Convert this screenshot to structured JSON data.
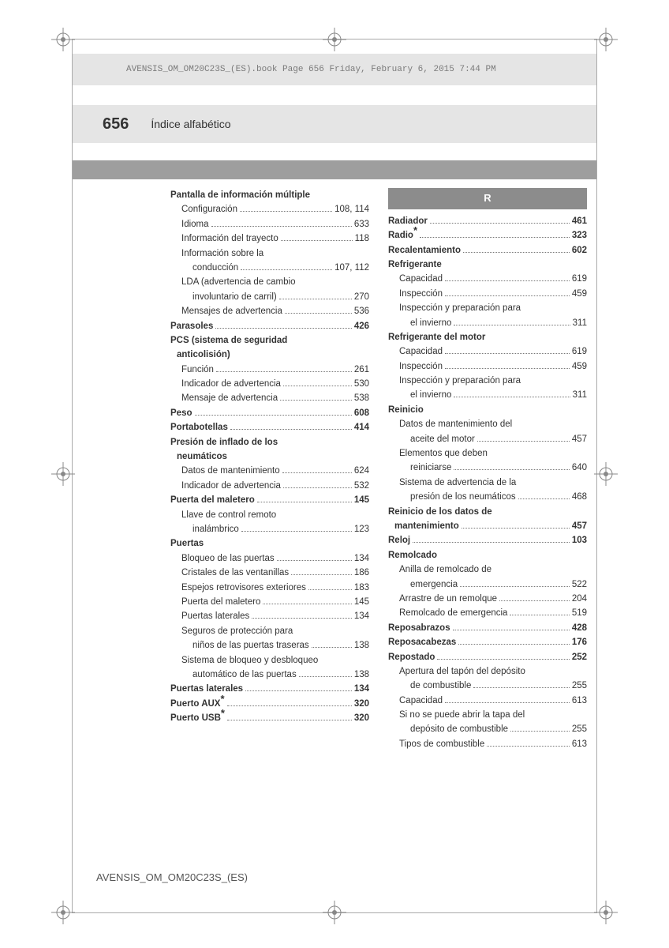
{
  "meta": {
    "bannerText": "AVENSIS_OM_OM20C23S_(ES).book  Page 656  Friday, February 6, 2015  7:44 PM",
    "pageNumber": "656",
    "sectionTitle": "Índice alfabético",
    "footer": "AVENSIS_OM_OM20C23S_(ES)"
  },
  "colors": {
    "bannerBg": "#e5e5e5",
    "accentBg": "#9e9e9e",
    "letterBg": "#8c8c8c",
    "text": "#333333"
  },
  "leftCol": [
    {
      "label": "Pantalla de información múltiple",
      "page": "",
      "bold": true,
      "indent": 0,
      "dots": false
    },
    {
      "label": "Configuración",
      "page": "108, 114",
      "indent": 1,
      "dots": true
    },
    {
      "label": "Idioma",
      "page": "633",
      "indent": 1,
      "dots": true
    },
    {
      "label": "Información del trayecto",
      "page": "118",
      "indent": 1,
      "dots": true
    },
    {
      "label": "Información sobre la",
      "page": "",
      "indent": 1,
      "dots": false
    },
    {
      "label": "conducción",
      "page": "107, 112",
      "indent": 2,
      "dots": true
    },
    {
      "label": "LDA (advertencia de cambio",
      "page": "",
      "indent": 1,
      "dots": false
    },
    {
      "label": "involuntario de carril)",
      "page": "270",
      "indent": 2,
      "dots": true
    },
    {
      "label": "Mensajes de advertencia",
      "page": "536",
      "indent": 1,
      "dots": true
    },
    {
      "label": "Parasoles",
      "page": "426",
      "bold": true,
      "indent": 0,
      "dots": true
    },
    {
      "label": "PCS (sistema de seguridad",
      "page": "",
      "bold": true,
      "indent": 0,
      "dots": false
    },
    {
      "label": "anticolisión)",
      "page": "",
      "bold": true,
      "indent": 0,
      "dots": false,
      "indentPx": 8
    },
    {
      "label": "Función",
      "page": "261",
      "indent": 1,
      "dots": true
    },
    {
      "label": "Indicador de advertencia",
      "page": "530",
      "indent": 1,
      "dots": true
    },
    {
      "label": "Mensaje de advertencia",
      "page": "538",
      "indent": 1,
      "dots": true
    },
    {
      "label": "Peso",
      "page": "608",
      "bold": true,
      "indent": 0,
      "dots": true
    },
    {
      "label": "Portabotellas",
      "page": "414",
      "bold": true,
      "indent": 0,
      "dots": true
    },
    {
      "label": "Presión de inflado de los",
      "page": "",
      "bold": true,
      "indent": 0,
      "dots": false
    },
    {
      "label": "neumáticos",
      "page": "",
      "bold": true,
      "indent": 0,
      "dots": false,
      "indentPx": 8
    },
    {
      "label": "Datos de mantenimiento",
      "page": "624",
      "indent": 1,
      "dots": true
    },
    {
      "label": "Indicador de advertencia",
      "page": "532",
      "indent": 1,
      "dots": true
    },
    {
      "label": "Puerta del maletero",
      "page": "145",
      "bold": true,
      "indent": 0,
      "dots": true
    },
    {
      "label": "Llave de control remoto",
      "page": "",
      "indent": 1,
      "dots": false
    },
    {
      "label": "inalámbrico",
      "page": "123",
      "indent": 2,
      "dots": true
    },
    {
      "label": "Puertas",
      "page": "",
      "bold": true,
      "indent": 0,
      "dots": false
    },
    {
      "label": "Bloqueo de las puertas",
      "page": "134",
      "indent": 1,
      "dots": true
    },
    {
      "label": "Cristales de las ventanillas",
      "page": "186",
      "indent": 1,
      "dots": true
    },
    {
      "label": "Espejos retrovisores exteriores",
      "page": "183",
      "indent": 1,
      "dots": true
    },
    {
      "label": "Puerta del maletero",
      "page": "145",
      "indent": 1,
      "dots": true
    },
    {
      "label": "Puertas laterales",
      "page": "134",
      "indent": 1,
      "dots": true
    },
    {
      "label": "Seguros de protección para",
      "page": "",
      "indent": 1,
      "dots": false
    },
    {
      "label": "niños de las puertas traseras",
      "page": "138",
      "indent": 2,
      "dots": true
    },
    {
      "label": "Sistema de bloqueo y desbloqueo",
      "page": "",
      "indent": 1,
      "dots": false
    },
    {
      "label": "automático de las puertas",
      "page": "138",
      "indent": 2,
      "dots": true
    },
    {
      "label": "Puertas laterales",
      "page": "134",
      "bold": true,
      "indent": 0,
      "dots": true
    },
    {
      "label": "Puerto AUX",
      "page": "320",
      "bold": true,
      "indent": 0,
      "dots": true,
      "star": true
    },
    {
      "label": "Puerto USB",
      "page": "320",
      "bold": true,
      "indent": 0,
      "dots": true,
      "star": true
    }
  ],
  "rightHead": "R",
  "rightCol": [
    {
      "label": "Radiador",
      "page": "461",
      "bold": true,
      "indent": 0,
      "dots": true
    },
    {
      "label": "Radio",
      "page": "323",
      "bold": true,
      "indent": 0,
      "dots": true,
      "star": true
    },
    {
      "label": "Recalentamiento",
      "page": "602",
      "bold": true,
      "indent": 0,
      "dots": true
    },
    {
      "label": "Refrigerante",
      "page": "",
      "bold": true,
      "indent": 0,
      "dots": false
    },
    {
      "label": "Capacidad",
      "page": "619",
      "indent": 1,
      "dots": true
    },
    {
      "label": "Inspección",
      "page": "459",
      "indent": 1,
      "dots": true
    },
    {
      "label": "Inspección y preparación para",
      "page": "",
      "indent": 1,
      "dots": false
    },
    {
      "label": "el invierno",
      "page": "311",
      "indent": 2,
      "dots": true
    },
    {
      "label": "Refrigerante del motor",
      "page": "",
      "bold": true,
      "indent": 0,
      "dots": false
    },
    {
      "label": "Capacidad",
      "page": "619",
      "indent": 1,
      "dots": true
    },
    {
      "label": "Inspección",
      "page": "459",
      "indent": 1,
      "dots": true
    },
    {
      "label": "Inspección y preparación para",
      "page": "",
      "indent": 1,
      "dots": false
    },
    {
      "label": "el invierno",
      "page": "311",
      "indent": 2,
      "dots": true
    },
    {
      "label": "Reinicio",
      "page": "",
      "bold": true,
      "indent": 0,
      "dots": false
    },
    {
      "label": "Datos de mantenimiento del",
      "page": "",
      "indent": 1,
      "dots": false
    },
    {
      "label": "aceite del motor",
      "page": "457",
      "indent": 2,
      "dots": true
    },
    {
      "label": "Elementos que deben",
      "page": "",
      "indent": 1,
      "dots": false
    },
    {
      "label": "reiniciarse",
      "page": "640",
      "indent": 2,
      "dots": true
    },
    {
      "label": "Sistema de advertencia de la",
      "page": "",
      "indent": 1,
      "dots": false
    },
    {
      "label": "presión de los neumáticos",
      "page": "468",
      "indent": 2,
      "dots": true
    },
    {
      "label": "Reinicio de los datos de",
      "page": "",
      "bold": true,
      "indent": 0,
      "dots": false
    },
    {
      "label": "mantenimiento",
      "page": "457",
      "bold": true,
      "indent": 0,
      "dots": true,
      "indentPx": 8
    },
    {
      "label": "Reloj",
      "page": "103",
      "bold": true,
      "indent": 0,
      "dots": true
    },
    {
      "label": "Remolcado",
      "page": "",
      "bold": true,
      "indent": 0,
      "dots": false
    },
    {
      "label": "Anilla de remolcado de",
      "page": "",
      "indent": 1,
      "dots": false
    },
    {
      "label": "emergencia",
      "page": "522",
      "indent": 2,
      "dots": true
    },
    {
      "label": "Arrastre de un remolque",
      "page": "204",
      "indent": 1,
      "dots": true
    },
    {
      "label": "Remolcado de emergencia",
      "page": "519",
      "indent": 1,
      "dots": true
    },
    {
      "label": "Reposabrazos",
      "page": "428",
      "bold": true,
      "indent": 0,
      "dots": true
    },
    {
      "label": "Reposacabezas",
      "page": "176",
      "bold": true,
      "indent": 0,
      "dots": true
    },
    {
      "label": "Repostado",
      "page": "252",
      "bold": true,
      "indent": 0,
      "dots": true
    },
    {
      "label": "Apertura del tapón del depósito",
      "page": "",
      "indent": 1,
      "dots": false
    },
    {
      "label": "de combustible",
      "page": "255",
      "indent": 2,
      "dots": true
    },
    {
      "label": "Capacidad",
      "page": "613",
      "indent": 1,
      "dots": true
    },
    {
      "label": "Si no se puede abrir la tapa del",
      "page": "",
      "indent": 1,
      "dots": false
    },
    {
      "label": "depósito de combustible",
      "page": "255",
      "indent": 2,
      "dots": true
    },
    {
      "label": "Tipos de combustible",
      "page": "613",
      "indent": 1,
      "dots": true
    }
  ]
}
